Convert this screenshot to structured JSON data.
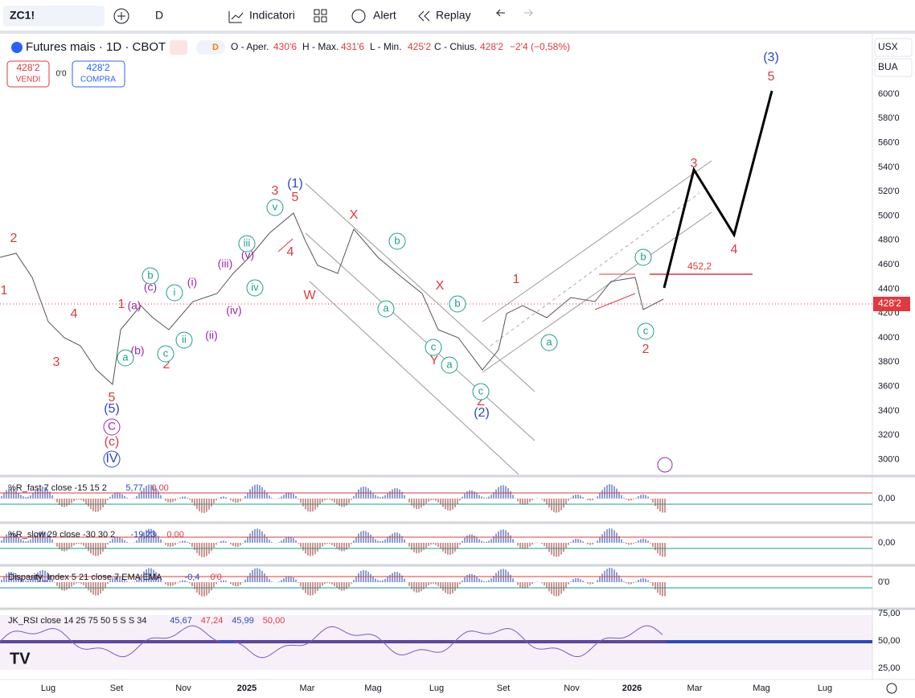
{
  "toolbar": {
    "symbol": "ZC1!",
    "interval": "D",
    "indicators": "Indicatori",
    "alert": "Alert",
    "replay": "Replay"
  },
  "header": {
    "title": "Futures mais · 1D · CBOT",
    "badge": "D",
    "open_label": "O - Aper.",
    "open": "430'6",
    "high_label": "H - Max.",
    "high": "431'6",
    "low_label": "L - Min.",
    "low": "425'2",
    "close_label": "C - Chius.",
    "close": "428'2",
    "change": "−2'4 (−0,58%)"
  },
  "trade": {
    "sell_price": "428'2",
    "sell": "VENDI",
    "spread": "0'0",
    "buy_price": "428'2",
    "buy": "COMPRA"
  },
  "price_axis": {
    "currency": "USX",
    "unit": "BUA",
    "labels": [
      "600'0",
      "580'0",
      "560'0",
      "540'0",
      "520'0",
      "500'0",
      "480'0",
      "460'0",
      "440'0",
      "420'0",
      "400'0",
      "380'0",
      "360'0",
      "340'0",
      "320'0",
      "300'0"
    ],
    "current": "428'2"
  },
  "time_axis": [
    "Lug",
    "Set",
    "Nov",
    "2025",
    "Mar",
    "Mag",
    "Lug",
    "Set",
    "Nov",
    "2026",
    "Mar",
    "Mag",
    "Lug"
  ],
  "waves": [
    "2",
    "1",
    "4",
    "3",
    "5",
    "1",
    "2",
    "3",
    "5",
    "4",
    "X",
    "W",
    "X",
    "Y",
    "Z",
    "1",
    "3",
    "4",
    "2",
    "5",
    "(1)",
    "(2)",
    "(3)",
    "(5)",
    "(a)",
    "(b)",
    "(c)",
    "(i)",
    "(ii)",
    "(iii)",
    "(iv)",
    "(v)",
    "a",
    "b",
    "i",
    "c",
    "ii",
    "iii",
    "iv",
    "v",
    "b",
    "a",
    "b",
    "c",
    "a",
    "c",
    "a",
    "b",
    "c",
    "C",
    "(c)",
    "IV"
  ],
  "level_label": "452,2",
  "panes": [
    {
      "title": "%R_fast 7 close -15 15 2",
      "values": [
        "5,77",
        "0,00"
      ],
      "axis": [
        "0,00"
      ]
    },
    {
      "title": "%R_slow 29 close -30 30 2",
      "values": [
        "-19,23",
        "0,00"
      ],
      "axis": [
        "0,00"
      ]
    },
    {
      "title": "Disparity_Index 5 21 close 7 EMA EMA",
      "values": [
        "-0,4",
        "0'0"
      ],
      "axis": [
        "0'0"
      ]
    },
    {
      "title": "JK_RSI close 14 25 75 50 5 S S 34",
      "values": [
        "45,67",
        "47,24",
        "45,99",
        "50,00"
      ],
      "axis": [
        "75,00",
        "50,00",
        "25,00"
      ]
    }
  ]
}
